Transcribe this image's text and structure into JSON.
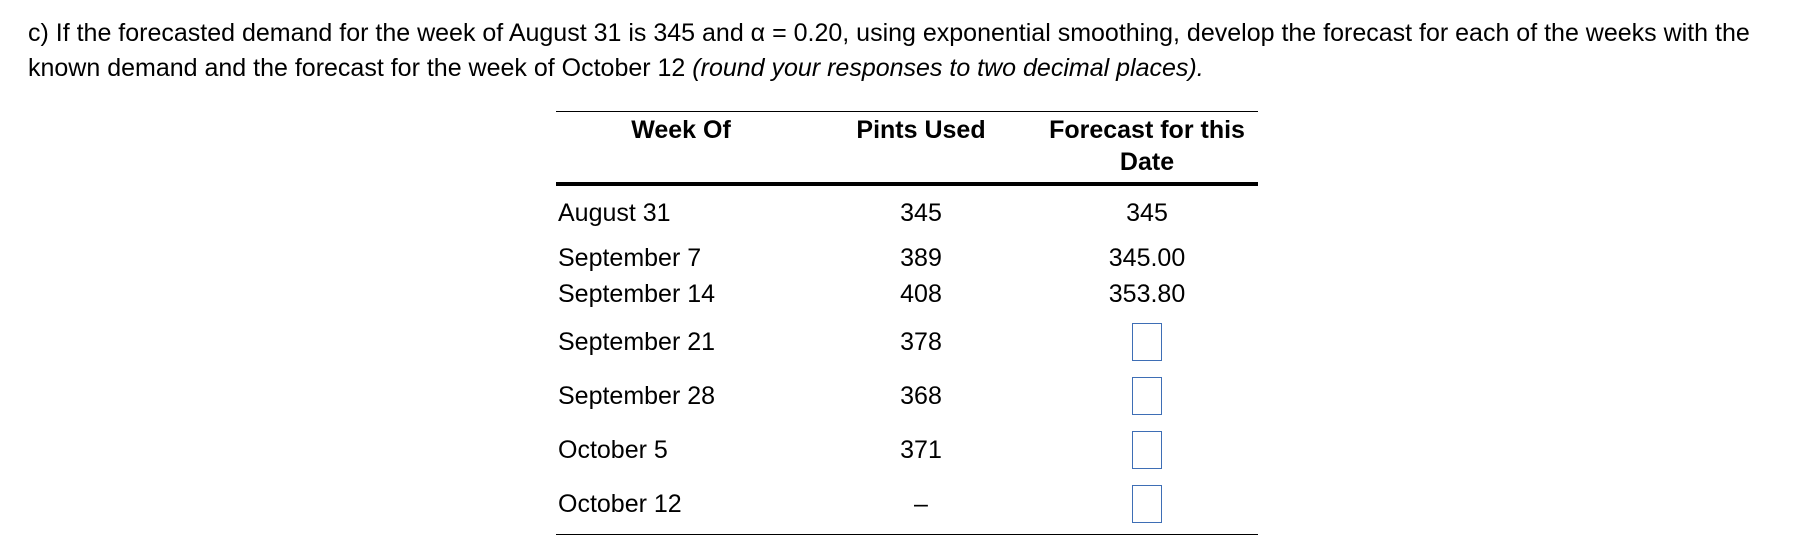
{
  "question": {
    "text": "c) If the forecasted demand for the week of August 31 is 345 and α = 0.20, using exponential smoothing, develop the forecast for each of the weeks with the known demand and the forecast for the week of October 12",
    "instruction": "(round your responses to two decimal places)."
  },
  "table": {
    "headers": {
      "week": "Week Of",
      "pints": "Pints Used",
      "forecast_line1": "Forecast for this",
      "forecast_line2": "Date"
    },
    "rows": [
      {
        "week": "August 31",
        "pints": "345",
        "forecast": "345"
      },
      {
        "week": "September 7",
        "pints": "389",
        "forecast": "345.00"
      },
      {
        "week": "September 14",
        "pints": "408",
        "forecast": "353.80"
      },
      {
        "week": "September 21",
        "pints": "378",
        "forecast": ""
      },
      {
        "week": "September 28",
        "pints": "368",
        "forecast": ""
      },
      {
        "week": "October 5",
        "pints": "371",
        "forecast": ""
      },
      {
        "week": "October 12",
        "pints": "–",
        "forecast": ""
      }
    ]
  },
  "colors": {
    "answer_box_border": "#3e6eb5"
  }
}
